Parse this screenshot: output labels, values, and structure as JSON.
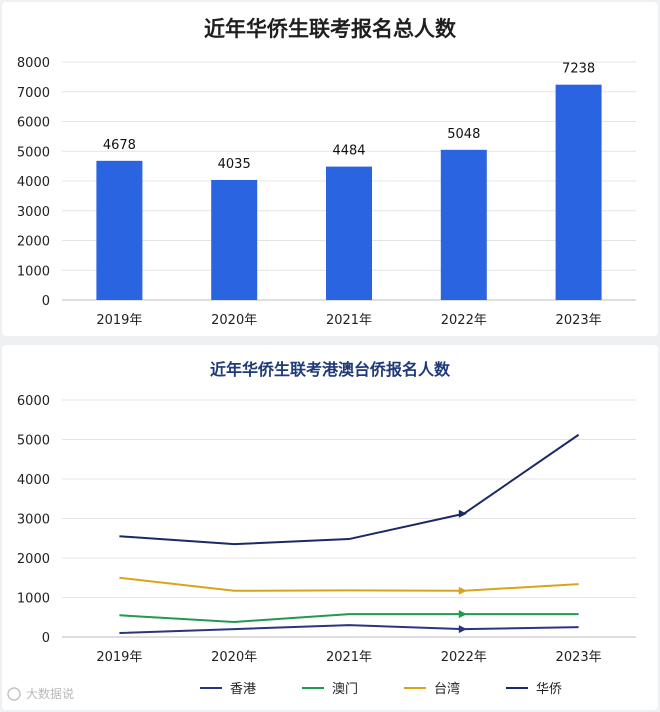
{
  "chart_data": [
    {
      "type": "bar",
      "title": "近年华侨生联考报名总人数",
      "categories": [
        "2019年",
        "2020年",
        "2021年",
        "2022年",
        "2023年"
      ],
      "values": [
        4678,
        4035,
        4484,
        5048,
        7238
      ],
      "data_labels": [
        "4678",
        "4035",
        "4484",
        "5048",
        "7238"
      ],
      "yticks": [
        "0",
        "1000",
        "2000",
        "3000",
        "4000",
        "5000",
        "6000",
        "7000",
        "8000"
      ],
      "ylim": [
        0,
        8000
      ],
      "grid": true,
      "colors": {
        "bar": "#2a64e0"
      }
    },
    {
      "type": "line",
      "title": "近年华侨生联考港澳台侨报名人数",
      "categories": [
        "2019年",
        "2020年",
        "2021年",
        "2022年",
        "2023年"
      ],
      "series": [
        {
          "name": "香港",
          "values": [
            100,
            200,
            300,
            200,
            250
          ],
          "color": "#2a3580"
        },
        {
          "name": "澳门",
          "values": [
            550,
            380,
            580,
            580,
            580
          ],
          "color": "#1f9a50"
        },
        {
          "name": "台湾",
          "values": [
            1500,
            1170,
            1180,
            1170,
            1340
          ],
          "color": "#d9a41a"
        },
        {
          "name": "华侨",
          "values": [
            2550,
            2350,
            2480,
            3120,
            5120
          ],
          "color": "#1a2a66"
        }
      ],
      "yticks": [
        "0",
        "1000",
        "2000",
        "3000",
        "4000",
        "5000",
        "6000"
      ],
      "ylim": [
        0,
        6000
      ],
      "grid": true,
      "legend": "bottom"
    }
  ],
  "watermark": "大数据说"
}
